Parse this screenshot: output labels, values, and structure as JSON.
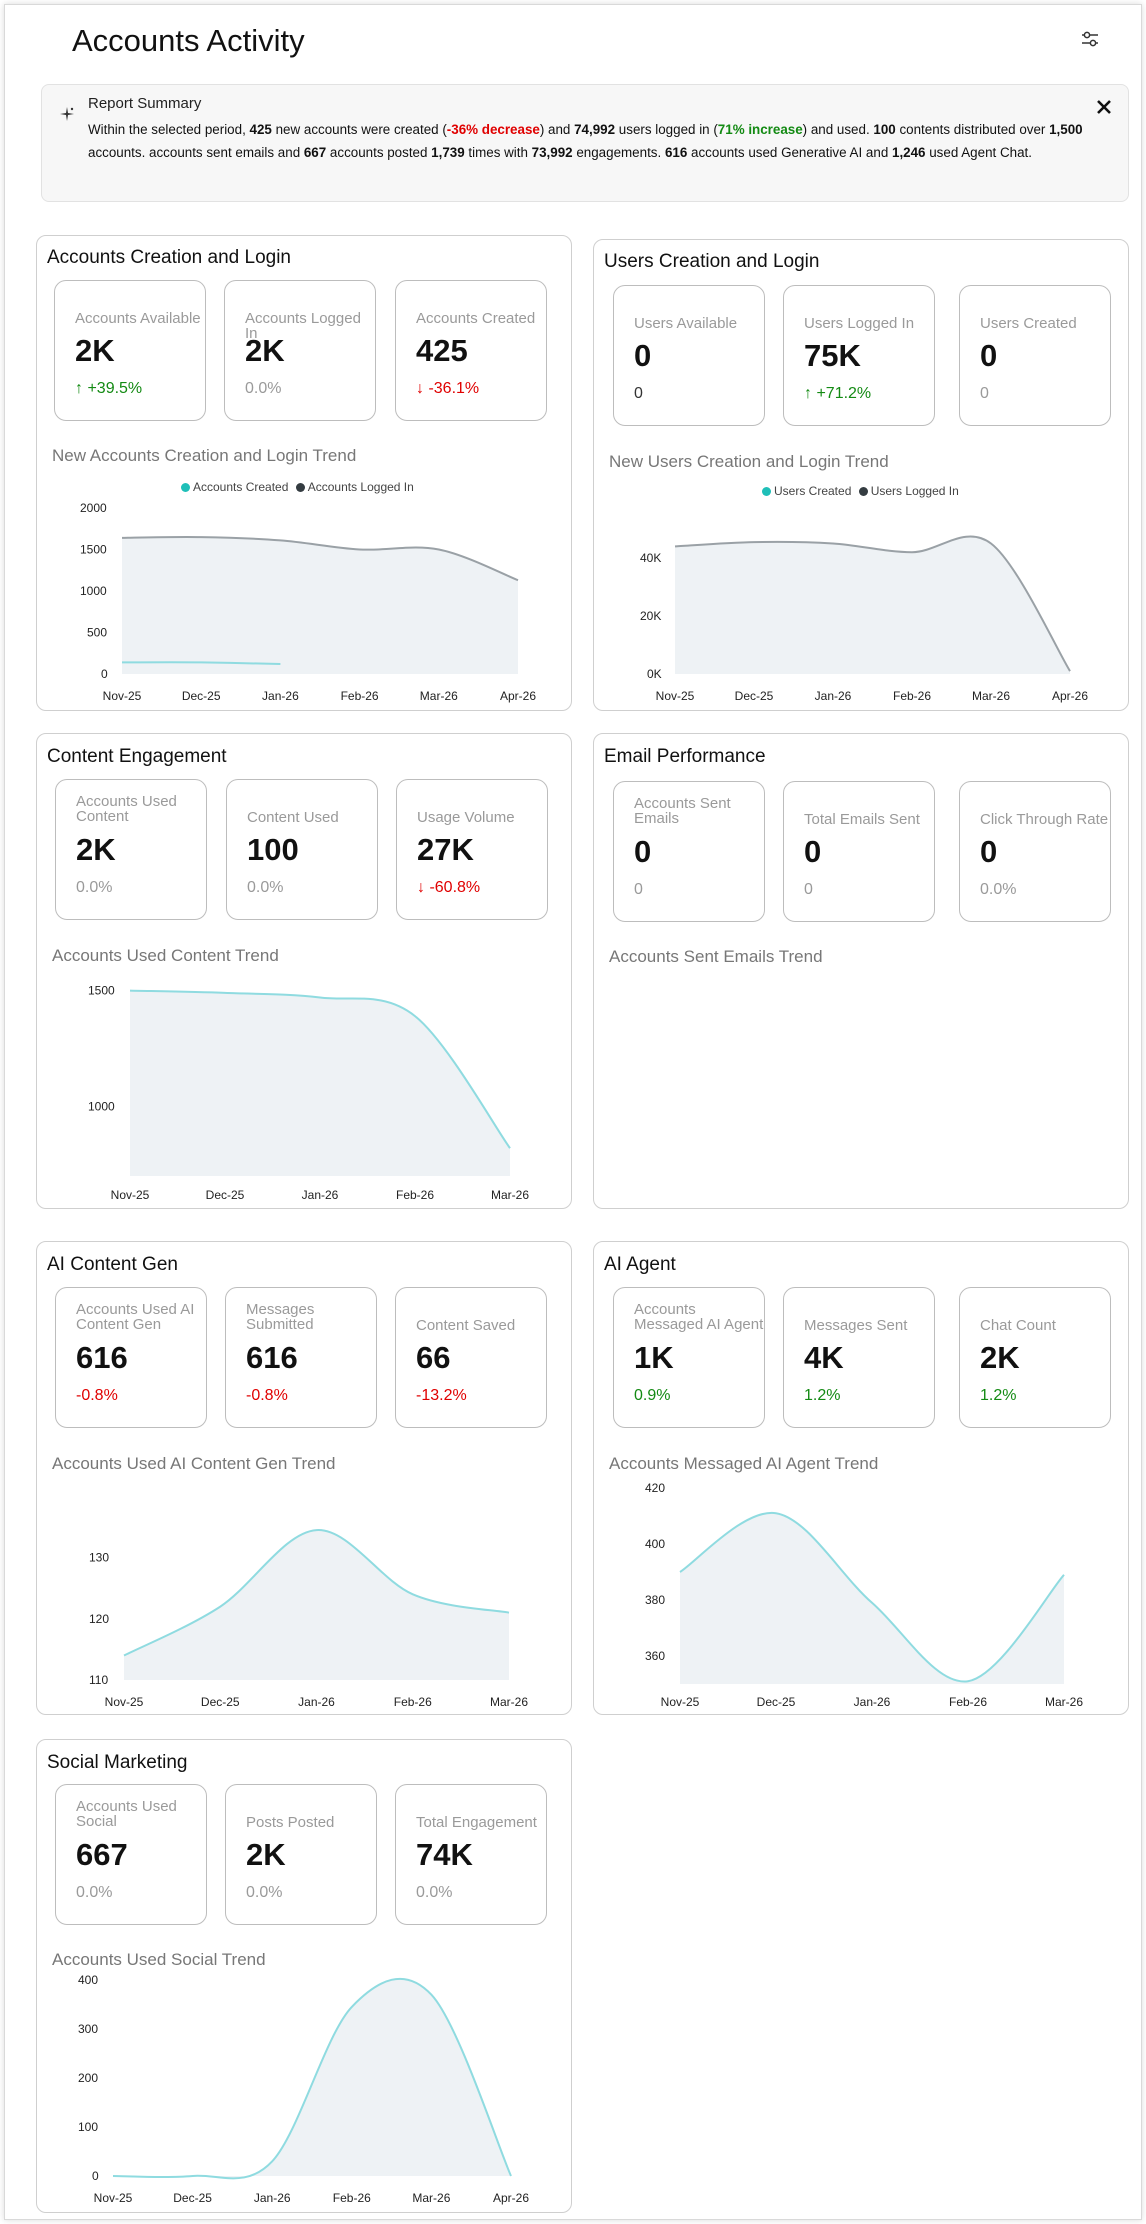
{
  "page": {
    "title": "Accounts Activity",
    "filter_icon": "sliders-icon"
  },
  "summary": {
    "title": "Report Summary",
    "icon": "sparkle-icon",
    "close_icon": "close-icon",
    "s1": "Within the selected period, ",
    "n1": "425",
    "s2": " new accounts were created (",
    "r1": "-36% decrease",
    "s3": ") and ",
    "n2": "74,992",
    "s4": " users logged in (",
    "g1": "71% increase",
    "s5": ") and used. ",
    "n3": "100",
    "s6": " contents distributed over ",
    "n4": "1,500",
    "s7": " accounts. accounts sent emails and ",
    "n5": "667",
    "s8": " accounts posted ",
    "n6": "1,739",
    "s9": " times with ",
    "n7": "73,992",
    "s10": " engagements. ",
    "n8": "616",
    "s11": " accounts used Generative AI and ",
    "n9": "1,246",
    "s12": " used Agent Chat."
  },
  "colors": {
    "teal": "#1fbfb8",
    "dark": "#343c41",
    "red": "#e00000",
    "green": "#138a13",
    "fill": "#eef2f5",
    "line_gray": "#9aa1a6",
    "line_teal": "#8fdbe0"
  },
  "panels": {
    "accounts": {
      "title": "Accounts Creation and Login",
      "cards": [
        {
          "label": "Accounts Available",
          "value": "2K",
          "delta": "↑ +39.5%",
          "tone": "up"
        },
        {
          "label": "Accounts Logged In",
          "value": "2K",
          "delta": "0.0%",
          "tone": "neutral"
        },
        {
          "label": "Accounts Created",
          "value": "425",
          "delta": "↓ -36.1%",
          "tone": "down"
        }
      ],
      "chart_title": "New Accounts Creation and Login Trend",
      "legend": [
        "Accounts Created",
        "Accounts Logged In"
      ]
    },
    "users": {
      "title": "Users Creation and Login",
      "cards": [
        {
          "label": "Users Available",
          "value": "0",
          "delta": "0",
          "tone": "dark"
        },
        {
          "label": "Users Logged In",
          "value": "75K",
          "delta": "↑ +71.2%",
          "tone": "up"
        },
        {
          "label": "Users Created",
          "value": "0",
          "delta": "0",
          "tone": "neutral"
        }
      ],
      "chart_title": "New Users Creation and Login Trend",
      "legend": [
        "Users Created",
        "Users Logged In"
      ]
    },
    "content": {
      "title": "Content Engagement",
      "cards": [
        {
          "label": "Accounts Used Content",
          "value": "2K",
          "delta": "0.0%",
          "tone": "neutral"
        },
        {
          "label": "Content Used",
          "value": "100",
          "delta": "0.0%",
          "tone": "neutral"
        },
        {
          "label": "Usage Volume",
          "value": "27K",
          "delta": "↓ -60.8%",
          "tone": "down"
        }
      ],
      "chart_title": "Accounts Used Content Trend"
    },
    "email": {
      "title": "Email Performance",
      "cards": [
        {
          "label": "Accounts Sent Emails",
          "value": "0",
          "delta": "0",
          "tone": "neutral"
        },
        {
          "label": "Total Emails Sent",
          "value": "0",
          "delta": "0",
          "tone": "neutral"
        },
        {
          "label": "Click Through Rate",
          "value": "0",
          "delta": "0.0%",
          "tone": "neutral"
        }
      ],
      "chart_title": "Accounts Sent Emails Trend"
    },
    "aicontent": {
      "title": "AI Content Gen",
      "cards": [
        {
          "label": "Accounts Used AI Content Gen",
          "value": "616",
          "delta": "-0.8%",
          "tone": "down"
        },
        {
          "label": "Messages Submitted",
          "value": "616",
          "delta": "-0.8%",
          "tone": "down"
        },
        {
          "label": "Content Saved",
          "value": "66",
          "delta": "-13.2%",
          "tone": "down"
        }
      ],
      "chart_title": "Accounts Used AI Content Gen Trend"
    },
    "aiagent": {
      "title": "AI Agent",
      "cards": [
        {
          "label": "Accounts Messaged AI Agent",
          "value": "1K",
          "delta": "0.9%",
          "tone": "up"
        },
        {
          "label": "Messages Sent",
          "value": "4K",
          "delta": "1.2%",
          "tone": "up"
        },
        {
          "label": "Chat Count",
          "value": "2K",
          "delta": "1.2%",
          "tone": "up"
        }
      ],
      "chart_title": "Accounts Messaged AI Agent Trend"
    },
    "social": {
      "title": "Social Marketing",
      "cards": [
        {
          "label": "Accounts Used Social",
          "value": "667",
          "delta": "0.0%",
          "tone": "neutral"
        },
        {
          "label": "Posts Posted",
          "value": "2K",
          "delta": "0.0%",
          "tone": "neutral"
        },
        {
          "label": "Total Engagement",
          "value": "74K",
          "delta": "0.0%",
          "tone": "neutral"
        }
      ],
      "chart_title": "Accounts Used Social Trend"
    }
  },
  "chart_data": [
    {
      "id": "accounts",
      "type": "area",
      "x": [
        "Nov-25",
        "Dec-25",
        "Jan-26",
        "Feb-26",
        "Mar-26",
        "Apr-26"
      ],
      "yticks": [
        0,
        500,
        1000,
        1500,
        2000
      ],
      "yticklabels": [
        "0",
        "500",
        "1000",
        "1500",
        "2000"
      ],
      "ylim": [
        0,
        2000
      ],
      "legend_position": "top",
      "series": [
        {
          "name": "Accounts Logged In",
          "values": [
            1640,
            1650,
            1610,
            1500,
            1500,
            1130
          ],
          "color": "#9aa1a6",
          "fill": true
        },
        {
          "name": "Accounts Created",
          "values": [
            140,
            140,
            120,
            null,
            null,
            null
          ],
          "color": "#8fdbe0",
          "fill": false
        }
      ]
    },
    {
      "id": "users",
      "type": "area",
      "x": [
        "Nov-25",
        "Dec-25",
        "Jan-26",
        "Feb-26",
        "Mar-26",
        "Apr-26"
      ],
      "yticks": [
        0,
        20000,
        40000
      ],
      "yticklabels": [
        "0K",
        "20K",
        "40K"
      ],
      "ylim": [
        0,
        50000
      ],
      "legend_position": "top",
      "series": [
        {
          "name": "Users Logged In",
          "values": [
            44000,
            45500,
            45000,
            42000,
            45000,
            1000
          ],
          "color": "#9aa1a6",
          "fill": true
        }
      ]
    },
    {
      "id": "content",
      "type": "area",
      "x": [
        "Nov-25",
        "Dec-25",
        "Jan-26",
        "Feb-26",
        "Mar-26"
      ],
      "yticks": [
        1000,
        1500
      ],
      "yticklabels": [
        "1000",
        "1500"
      ],
      "ylim": [
        700,
        1550
      ],
      "series": [
        {
          "name": "",
          "values": [
            1500,
            1490,
            1470,
            1390,
            820
          ],
          "color": "#8fdbe0",
          "fill": true
        }
      ]
    },
    {
      "id": "aicontent",
      "type": "area",
      "x": [
        "Nov-25",
        "Dec-25",
        "Jan-26",
        "Feb-26",
        "Mar-26"
      ],
      "yticks": [
        110,
        120,
        130
      ],
      "yticklabels": [
        "110",
        "120",
        "130"
      ],
      "ylim": [
        110,
        135
      ],
      "series": [
        {
          "name": "",
          "values": [
            114,
            122,
            134.5,
            124,
            121
          ],
          "color": "#8fdbe0",
          "fill": true
        }
      ]
    },
    {
      "id": "aiagent",
      "type": "area",
      "x": [
        "Nov-25",
        "Dec-25",
        "Jan-26",
        "Feb-26",
        "Mar-26"
      ],
      "yticks": [
        360,
        380,
        400,
        420
      ],
      "yticklabels": [
        "360",
        "380",
        "400",
        "420"
      ],
      "ylim": [
        350,
        420
      ],
      "series": [
        {
          "name": "",
          "values": [
            390,
            411,
            379,
            351,
            389
          ],
          "color": "#8fdbe0",
          "fill": true
        }
      ]
    },
    {
      "id": "social",
      "type": "area",
      "x": [
        "Nov-25",
        "Dec-25",
        "Jan-26",
        "Feb-26",
        "Mar-26",
        "Apr-26"
      ],
      "yticks": [
        0,
        100,
        200,
        300,
        400
      ],
      "yticklabels": [
        "0",
        "100",
        "200",
        "300",
        "400"
      ],
      "ylim": [
        0,
        400
      ],
      "series": [
        {
          "name": "",
          "values": [
            0,
            0,
            30,
            345,
            370,
            0
          ],
          "color": "#8fdbe0",
          "fill": true
        }
      ]
    }
  ]
}
